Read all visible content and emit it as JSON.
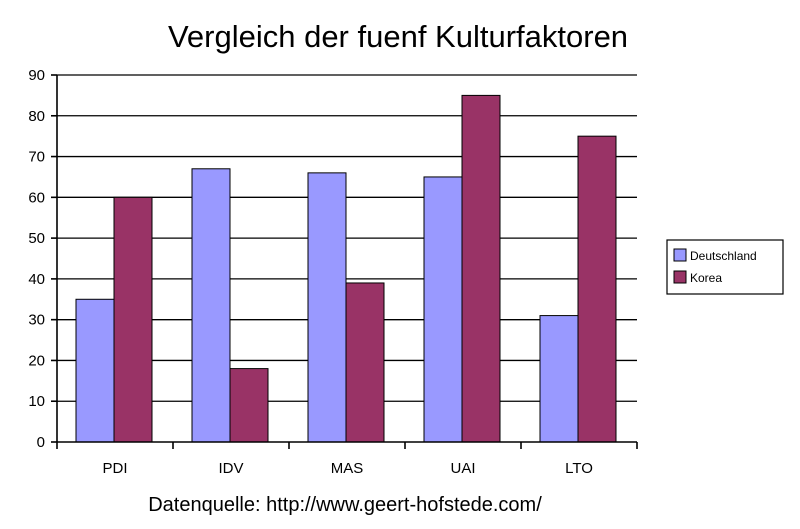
{
  "chart_data": {
    "type": "bar",
    "title": "Vergleich der fuenf Kulturfaktoren",
    "categories": [
      "PDI",
      "IDV",
      "MAS",
      "UAI",
      "LTO"
    ],
    "series": [
      {
        "name": "Deutschland",
        "values": [
          35,
          67,
          66,
          65,
          31
        ],
        "color": "#9999ff"
      },
      {
        "name": "Korea",
        "values": [
          60,
          18,
          39,
          85,
          75
        ],
        "color": "#993366"
      }
    ],
    "y_ticks": [
      "0",
      "10",
      "20",
      "30",
      "40",
      "50",
      "60",
      "70",
      "80",
      "90"
    ],
    "ylim": [
      0,
      90
    ],
    "grid": true,
    "legend_position": "right",
    "source": "Datenquelle: http://www.geert-hofstede.com/"
  }
}
